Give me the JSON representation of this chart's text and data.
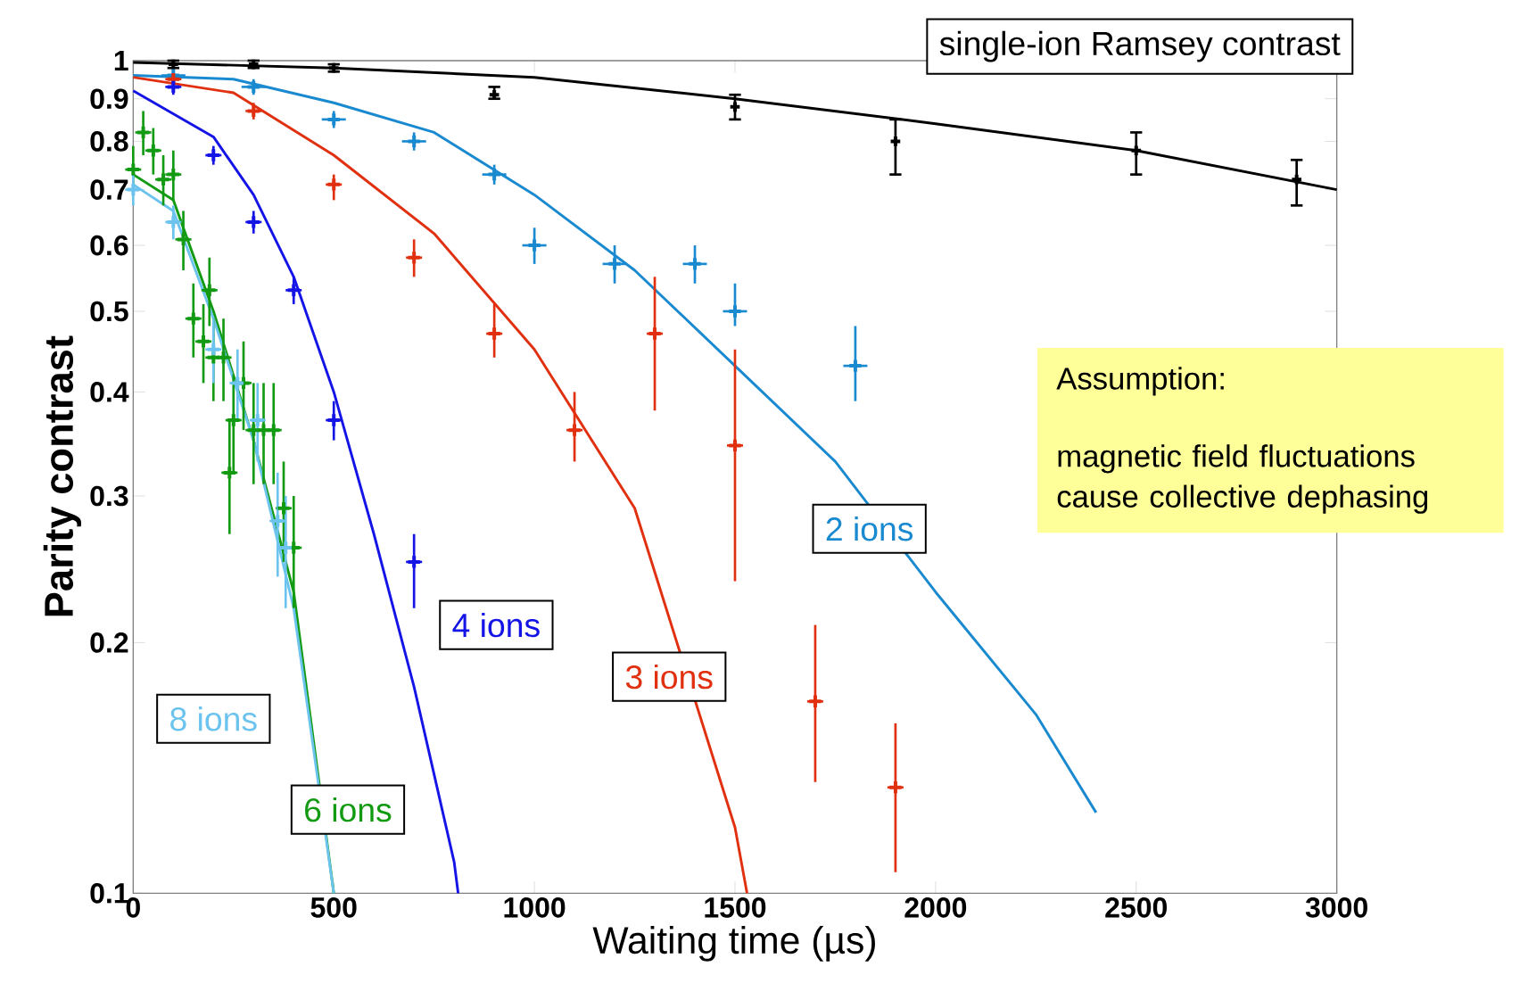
{
  "chart_data": {
    "type": "scatter",
    "xlabel": "Waiting time (µs)",
    "ylabel": "Parity contrast",
    "log": "y",
    "grid": false,
    "xlim": [
      0,
      3000
    ],
    "ylim": [
      0.1,
      1
    ],
    "xticks": [
      0,
      500,
      1000,
      1500,
      2000,
      2500,
      3000
    ],
    "yticks": [
      0.1,
      0.2,
      0.3,
      0.4,
      0.5,
      0.6,
      0.7,
      0.8,
      0.9,
      1
    ],
    "annotations": [
      "Assumption:",
      "magnetic field fluctuations cause collective dephasing"
    ],
    "series": [
      {
        "type": "line",
        "line_style": "solid",
        "color": "#000000",
        "x": [
          0,
          500,
          1000,
          1500,
          2000,
          2500,
          3000
        ],
        "values": [
          0.995,
          0.98,
          0.955,
          0.9,
          0.84,
          0.78,
          0.7
        ]
      },
      {
        "type": "line",
        "line_style": "solid",
        "color": "#1a8ad0",
        "x": [
          0,
          250,
          500,
          750,
          1000,
          1250,
          1500,
          1750,
          2000,
          2250,
          2400
        ],
        "values": [
          0.96,
          0.95,
          0.89,
          0.82,
          0.69,
          0.56,
          0.43,
          0.33,
          0.23,
          0.164,
          0.125
        ]
      },
      {
        "type": "line",
        "line_style": "solid",
        "color": "#e0300f",
        "x": [
          0,
          250,
          500,
          750,
          1000,
          1250,
          1500,
          1530
        ],
        "values": [
          0.955,
          0.915,
          0.77,
          0.62,
          0.45,
          0.29,
          0.12,
          0.1
        ]
      },
      {
        "type": "line",
        "line_style": "solid",
        "color": "#1414e6",
        "x": [
          0,
          200,
          300,
          400,
          500,
          600,
          700,
          800,
          810
        ],
        "values": [
          0.92,
          0.81,
          0.69,
          0.55,
          0.4,
          0.27,
          0.177,
          0.109,
          0.1
        ]
      },
      {
        "type": "line",
        "line_style": "solid",
        "color": "#139a13",
        "x": [
          0,
          100,
          200,
          300,
          400,
          500
        ],
        "values": [
          0.73,
          0.68,
          0.5,
          0.35,
          0.23,
          0.1
        ]
      },
      {
        "type": "line",
        "line_style": "solid",
        "color": "#6cc4ee",
        "x": [
          0,
          100,
          200,
          300,
          400,
          500
        ],
        "values": [
          0.71,
          0.66,
          0.49,
          0.35,
          0.22,
          0.1
        ]
      },
      {
        "marker": "cross",
        "name": "single-ion Ramsey contrast",
        "color": "#000000",
        "x": [
          100,
          300,
          500,
          900,
          1500,
          1900,
          2500,
          2900
        ],
        "values": [
          0.99,
          0.99,
          0.98,
          0.91,
          0.88,
          0.8,
          0.78,
          0.72
        ],
        "errors": [
          0.01,
          0.01,
          0.01,
          [
            0.9,
            0.93
          ],
          [
            0.85,
            0.91
          ],
          [
            0.73,
            0.85
          ],
          [
            0.73,
            0.82
          ],
          [
            0.67,
            0.76
          ]
        ]
      },
      {
        "marker": "cross",
        "name": "2 ions",
        "color": "#1a8ad0",
        "x": [
          100,
          300,
          500,
          700,
          900,
          1000,
          1200,
          1400,
          1500,
          1800
        ],
        "values": [
          0.96,
          0.93,
          0.85,
          0.8,
          0.73,
          0.6,
          0.57,
          0.57,
          0.5,
          0.43
        ],
        "errors": [
          0.02,
          0.02,
          0.02,
          0.02,
          0.02,
          0.03,
          0.03,
          0.03,
          [
            0.48,
            0.54
          ],
          [
            0.39,
            0.48
          ]
        ],
        "xerrors": [
          30,
          30,
          30,
          30,
          30,
          30,
          30,
          30,
          30,
          30
        ]
      },
      {
        "marker": "cross",
        "name": "3 ions",
        "color": "#e0300f",
        "x": [
          100,
          300,
          500,
          700,
          900,
          1100,
          1300,
          1500,
          1700,
          1900
        ],
        "values": [
          0.95,
          0.87,
          0.71,
          0.58,
          0.47,
          0.36,
          0.47,
          0.345,
          0.17,
          0.134
        ],
        "errors": [
          null,
          0.02,
          [
            0.68,
            0.73
          ],
          0.03,
          [
            0.44,
            0.51
          ],
          [
            0.33,
            0.4
          ],
          [
            0.38,
            0.55
          ],
          [
            0.237,
            0.45
          ],
          [
            0.136,
            0.21
          ],
          [
            0.106,
            0.16
          ]
        ],
        "xerrors": [
          20,
          20,
          20,
          20,
          20,
          20,
          20,
          20,
          20,
          20
        ]
      },
      {
        "marker": "cross",
        "name": "4 ions",
        "color": "#1414e6",
        "x": [
          100,
          200,
          300,
          400,
          500,
          700
        ],
        "values": [
          0.93,
          0.77,
          0.64,
          0.53,
          0.37,
          0.25
        ],
        "errors": [
          0.02,
          0.02,
          0.02,
          0.02,
          [
            0.35,
            0.39
          ],
          [
            0.22,
            0.27
          ]
        ],
        "xerrors": [
          20,
          20,
          20,
          20,
          20,
          20
        ]
      },
      {
        "marker": "cross",
        "name": "6 ions",
        "color": "#139a13",
        "x": [
          0,
          25,
          50,
          75,
          100,
          125,
          150,
          175,
          190,
          200,
          225,
          240,
          250,
          275,
          300,
          325,
          350,
          375,
          400
        ],
        "values": [
          0.74,
          0.82,
          0.78,
          0.72,
          0.73,
          0.61,
          0.49,
          0.46,
          0.53,
          0.44,
          0.44,
          0.32,
          0.37,
          0.41,
          0.36,
          0.36,
          0.36,
          0.29,
          0.26
        ],
        "errors": [
          0.05,
          0.05,
          0.05,
          0.05,
          0.05,
          0.05,
          0.05,
          0.05,
          0.05,
          0.05,
          0.05,
          0.05,
          0.05,
          0.05,
          0.05,
          0.05,
          0.05,
          0.04,
          0.04
        ],
        "xerrors": [
          20,
          20,
          20,
          20,
          20,
          20,
          20,
          20,
          20,
          20,
          20,
          20,
          20,
          20,
          20,
          20,
          20,
          20,
          20
        ]
      },
      {
        "marker": "cross",
        "name": "8 ions",
        "color": "#6cc4ee",
        "x": [
          0,
          100,
          200,
          260,
          310,
          360,
          380
        ],
        "values": [
          0.7,
          0.64,
          0.45,
          0.41,
          0.37,
          0.28,
          0.26
        ],
        "errors": [
          0.03,
          0.03,
          0.04,
          0.04,
          0.04,
          0.04,
          0.04
        ],
        "xerrors": [
          20,
          20,
          20,
          20,
          20,
          20,
          20
        ]
      }
    ]
  }
}
